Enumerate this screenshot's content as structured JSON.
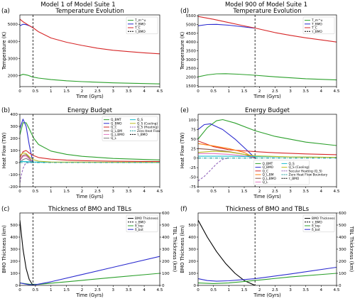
{
  "suptitles": [
    "Model 1 of Model Suite 1",
    "Model 900 of Model Suite 1"
  ],
  "colors": {
    "green": "#2ca02c",
    "blue": "#2b2bcf",
    "red": "#d62728",
    "orange": "#ff7f0e",
    "brown": "#8c564b",
    "pink": "#e377c2",
    "gray": "#7f7f7f",
    "olive": "#bcbd22",
    "cyan": "#17becf",
    "purple": "#9467bd",
    "black": "#000000",
    "teal": "#1f9e9e"
  },
  "chart_data": [
    {
      "panel": "(a)",
      "type": "line",
      "title": "Temperature Evolution",
      "xlabel": "Time (Gyrs)",
      "ylabel": "Temperature (K)",
      "xlim": [
        0,
        4.5
      ],
      "ylim": [
        1350,
        5550
      ],
      "xticks": [
        0,
        0.5,
        1,
        1.5,
        2,
        2.5,
        3,
        3.5,
        4,
        4.5
      ],
      "yticks": [
        2000,
        3000,
        4000,
        5000
      ],
      "vline": 0.42,
      "legend": "top-right",
      "series": [
        {
          "name": "T_m^u",
          "color": "green",
          "x": [
            0,
            0.1,
            0.25,
            0.4,
            0.6,
            1,
            1.5,
            2,
            3,
            4,
            4.5
          ],
          "y": [
            2000,
            2070,
            2020,
            1920,
            1850,
            1760,
            1690,
            1640,
            1570,
            1530,
            1510
          ]
        },
        {
          "name": "T_BMO",
          "color": "blue",
          "x": [
            0,
            0.1,
            0.2,
            0.3,
            0.42
          ],
          "y": [
            4920,
            5000,
            4980,
            4920,
            4800
          ]
        },
        {
          "name": "T_C",
          "color": "red",
          "x": [
            0,
            0.1,
            0.25,
            0.42,
            0.6,
            1,
            1.5,
            2,
            2.5,
            3,
            3.5,
            4,
            4.5
          ],
          "y": [
            5300,
            5150,
            4980,
            4800,
            4560,
            4200,
            3950,
            3760,
            3600,
            3480,
            3400,
            3330,
            3270
          ]
        },
        {
          "name": "τ_BMO",
          "style": "dashed"
        }
      ]
    },
    {
      "panel": "(b)",
      "type": "line",
      "title": "Energy Budget",
      "xlabel": "Time (Gyrs)",
      "ylabel": "Heat Flow (TW)",
      "xlim": [
        0,
        4.5
      ],
      "ylim": [
        -200,
        400
      ],
      "xticks": [
        0,
        0.5,
        1,
        1.5,
        2,
        2.5,
        3,
        3.5,
        4,
        4.5
      ],
      "yticks": [
        -200,
        -100,
        0,
        100,
        200,
        300,
        400
      ],
      "vline": 0.42,
      "legend": "top-right",
      "series": [
        {
          "name": "Q_BMT",
          "color": "green",
          "x": [
            0,
            0.1,
            0.2,
            0.3,
            0.45,
            0.6,
            1,
            1.5,
            2,
            3,
            4.5
          ],
          "y": [
            230,
            330,
            330,
            280,
            200,
            150,
            95,
            68,
            52,
            34,
            22
          ]
        },
        {
          "name": "Q_BMO",
          "color": "blue",
          "x": [
            0,
            0.1,
            0.2,
            0.3,
            0.42
          ],
          "y": [
            280,
            360,
            300,
            150,
            0
          ]
        },
        {
          "name": "Q_C",
          "color": "red",
          "x": [
            0,
            0.1,
            0.2,
            0.3,
            0.42,
            0.6,
            1,
            1.5,
            2,
            3,
            4.5
          ],
          "y": [
            40,
            90,
            100,
            80,
            60,
            42,
            28,
            20,
            16,
            11,
            8
          ]
        },
        {
          "name": "Q_L,BM",
          "color": "brown",
          "x": [
            0,
            0.1,
            0.2,
            0.3,
            0.42
          ],
          "y": [
            20,
            60,
            65,
            40,
            0
          ]
        },
        {
          "name": "Q_L,BMO",
          "color": "pink",
          "x": [
            0,
            0.1,
            0.2,
            0.3,
            0.42
          ],
          "y": [
            15,
            50,
            55,
            30,
            0
          ]
        },
        {
          "name": "Q_L",
          "color": "gray",
          "x": [
            0,
            0.1,
            0.2,
            0.3,
            0.42
          ],
          "y": [
            5,
            25,
            35,
            20,
            0
          ]
        },
        {
          "name": "Q_S",
          "color": "cyan",
          "x": [
            0,
            0.2,
            0.42,
            1,
            4.5
          ],
          "y": [
            10,
            8,
            5,
            3,
            1
          ]
        },
        {
          "name": "Q_S (Cooling)",
          "color": "olive",
          "x": [
            0,
            0.1,
            0.2,
            0.3,
            0.42,
            0.6,
            1,
            4.5
          ],
          "y": [
            60,
            80,
            75,
            50,
            25,
            12,
            5,
            2
          ]
        },
        {
          "name": "Q_S (Heating)",
          "color": "purple",
          "style": "dashed",
          "x": [
            0,
            0.05,
            0.1,
            0.15,
            0.2,
            0.3,
            0.42
          ],
          "y": [
            -165,
            -100,
            -50,
            -20,
            -5,
            0,
            0
          ]
        },
        {
          "name": "Zero Heat Flow",
          "color": "teal",
          "style": "dashdot",
          "x": [
            0,
            4.5
          ],
          "y": [
            0,
            0
          ]
        },
        {
          "name": "τ_BMO",
          "style": "dashed"
        }
      ]
    },
    {
      "panel": "(c)",
      "type": "line",
      "title": "Thickness of BMO and TBLs",
      "xlabel": "Time (Gyrs)",
      "ylabel": "BMO Thickness (km)",
      "y2label": "TBL Thickness (km)",
      "xlim": [
        0,
        4.5
      ],
      "ylim": [
        0,
        600
      ],
      "y2lim": [
        0,
        600
      ],
      "xticks": [
        0,
        0.5,
        1,
        1.5,
        2,
        2.5,
        3,
        3.5,
        4,
        4.5
      ],
      "yticks": [
        0,
        100,
        200,
        300,
        400,
        500
      ],
      "y2ticks": [
        0,
        100,
        200,
        300,
        400,
        500,
        600
      ],
      "vline": 0.42,
      "legend": "top-right",
      "series": [
        {
          "name": "BMO Thickness",
          "color": "black",
          "axis": "left",
          "x": [
            0,
            0.1,
            0.2,
            0.3,
            0.42
          ],
          "y": [
            540,
            300,
            140,
            50,
            0
          ]
        },
        {
          "name": "τ_BMO",
          "style": "dashed"
        },
        {
          "name": "δ_top",
          "color": "green",
          "axis": "right",
          "x": [
            0,
            0.3,
            0.6,
            1,
            2,
            3,
            4.5
          ],
          "y": [
            20,
            10,
            8,
            18,
            42,
            66,
            100
          ]
        },
        {
          "name": "δ_bot",
          "color": "blue",
          "axis": "right",
          "x": [
            0,
            0.3,
            0.5,
            1,
            2,
            3,
            4.5
          ],
          "y": [
            20,
            5,
            5,
            30,
            90,
            150,
            240
          ]
        }
      ]
    },
    {
      "panel": "(d)",
      "type": "line",
      "title": "Temperature Evolution",
      "xlabel": "Time (Gyrs)",
      "ylabel": "Temperature (K)",
      "xlim": [
        0,
        4.5
      ],
      "ylim": [
        1450,
        5550
      ],
      "xticks": [
        0,
        0.5,
        1,
        1.5,
        2,
        2.5,
        3,
        3.5,
        4,
        4.5
      ],
      "yticks": [
        1500,
        2000,
        2500,
        3000,
        3500,
        4000,
        4500,
        5000,
        5500
      ],
      "vline": 1.85,
      "legend": "top-right",
      "series": [
        {
          "name": "T_m^u",
          "color": "green",
          "x": [
            0,
            0.3,
            0.6,
            0.9,
            1.3,
            1.85,
            2.5,
            3.5,
            4.5
          ],
          "y": [
            2010,
            2120,
            2180,
            2190,
            2160,
            2100,
            2010,
            1900,
            1830
          ]
        },
        {
          "name": "T_BMO",
          "color": "blue",
          "x": [
            0,
            0.3,
            0.6,
            1,
            1.4,
            1.85
          ],
          "y": [
            4930,
            5000,
            5010,
            4960,
            4880,
            4790
          ]
        },
        {
          "name": "T_C",
          "color": "red",
          "x": [
            0,
            0.5,
            1,
            1.5,
            1.85,
            2.5,
            3,
            3.5,
            4,
            4.5
          ],
          "y": [
            5460,
            5300,
            5110,
            4920,
            4800,
            4540,
            4380,
            4240,
            4120,
            4000
          ]
        },
        {
          "name": "τ_BMO",
          "style": "dashed"
        }
      ]
    },
    {
      "panel": "(e)",
      "type": "line",
      "title": "Energy Budget",
      "xlabel": "Time (Gyrs)",
      "ylabel": "Heat Flow (TW)",
      "xlim": [
        0,
        4.5
      ],
      "ylim": [
        -75,
        115
      ],
      "xticks": [
        0,
        0.5,
        1,
        1.5,
        2,
        2.5,
        3,
        3.5,
        4,
        4.5
      ],
      "yticks": [
        -75,
        -50,
        -25,
        0,
        25,
        50,
        75,
        100
      ],
      "vline": 1.85,
      "legend": "bottom-center",
      "series": [
        {
          "name": "Q_BMT",
          "color": "green",
          "x": [
            0,
            0.3,
            0.6,
            0.8,
            1.2,
            1.85,
            2.5,
            3.5,
            4.5
          ],
          "y": [
            50,
            80,
            98,
            101,
            92,
            72,
            57,
            42,
            33
          ]
        },
        {
          "name": "Q_BMO",
          "color": "blue",
          "x": [
            0,
            0.2,
            0.4,
            0.8,
            1.2,
            1.6,
            1.85
          ],
          "y": [
            75,
            88,
            90,
            75,
            50,
            20,
            0
          ]
        },
        {
          "name": "Q_C",
          "color": "red",
          "x": [
            0,
            0.5,
            1,
            1.5,
            1.85,
            2.5,
            3.5,
            4.5
          ],
          "y": [
            45,
            30,
            22,
            19,
            17,
            14,
            11,
            9
          ]
        },
        {
          "name": "Q_L,BM",
          "color": "orange",
          "x": [
            0,
            0.5,
            1,
            1.5,
            1.85
          ],
          "y": [
            38,
            32,
            25,
            15,
            0
          ]
        },
        {
          "name": "Q_L,BMO",
          "color": "brown",
          "x": [
            0,
            0.5,
            1,
            1.5,
            1.85
          ],
          "y": [
            25,
            22,
            17,
            10,
            0
          ]
        },
        {
          "name": "Q_L",
          "color": "pink",
          "x": [
            0,
            0.5,
            1,
            1.5,
            1.85
          ],
          "y": [
            12,
            12,
            10,
            6,
            0
          ]
        },
        {
          "name": "Q_S",
          "color": "cyan",
          "x": [
            0,
            1,
            1.85,
            4.5
          ],
          "y": [
            5,
            5,
            4,
            2
          ]
        },
        {
          "name": "Q_S (Cooling)",
          "color": "olive",
          "x": [
            0,
            0.5,
            1,
            1.5,
            1.85,
            3,
            4.5
          ],
          "y": [
            15,
            18,
            16,
            10,
            6,
            3,
            2
          ]
        },
        {
          "name": "Secular Heating (Q_S)",
          "color": "purple",
          "style": "dashed",
          "x": [
            0,
            0.2,
            0.4,
            0.6,
            0.8,
            1
          ],
          "y": [
            -60,
            -48,
            -32,
            -15,
            -3,
            0
          ]
        },
        {
          "name": "Zero Heat Flow Boundary",
          "color": "teal",
          "style": "dashdot",
          "x": [
            0,
            4.5
          ],
          "y": [
            0,
            0
          ]
        },
        {
          "name": "τ_BMO",
          "style": "dashed"
        }
      ]
    },
    {
      "panel": "(f)",
      "type": "line",
      "title": "Thickness of BMO and TBLs",
      "xlabel": "Time (Gyrs)",
      "ylabel": "BMO Thickness (km)",
      "y2label": "TBL Thickness (km)",
      "xlim": [
        0,
        4.5
      ],
      "ylim": [
        0,
        600
      ],
      "y2lim": [
        0,
        600
      ],
      "xticks": [
        0,
        0.5,
        1,
        1.5,
        2,
        2.5,
        3,
        3.5,
        4,
        4.5
      ],
      "yticks": [
        0,
        100,
        200,
        300,
        400,
        500
      ],
      "y2ticks": [
        0,
        100,
        200,
        300,
        400,
        500,
        600
      ],
      "vline": 1.85,
      "legend": "top-right",
      "series": [
        {
          "name": "BMO Thickness",
          "color": "black",
          "axis": "left",
          "x": [
            0,
            0.3,
            0.6,
            0.9,
            1.2,
            1.5,
            1.85
          ],
          "y": [
            540,
            400,
            280,
            180,
            100,
            40,
            0
          ]
        },
        {
          "name": "τ_BMO",
          "style": "dashed"
        },
        {
          "name": "δ_top",
          "color": "green",
          "axis": "right",
          "x": [
            0,
            0.5,
            1,
            2,
            3,
            4.5
          ],
          "y": [
            20,
            15,
            20,
            45,
            70,
            100
          ]
        },
        {
          "name": "δ_bot",
          "color": "blue",
          "axis": "right",
          "x": [
            0,
            0.3,
            0.6,
            1,
            1.85,
            3,
            4.5
          ],
          "y": [
            55,
            40,
            35,
            38,
            55,
            95,
            150
          ]
        }
      ]
    }
  ]
}
